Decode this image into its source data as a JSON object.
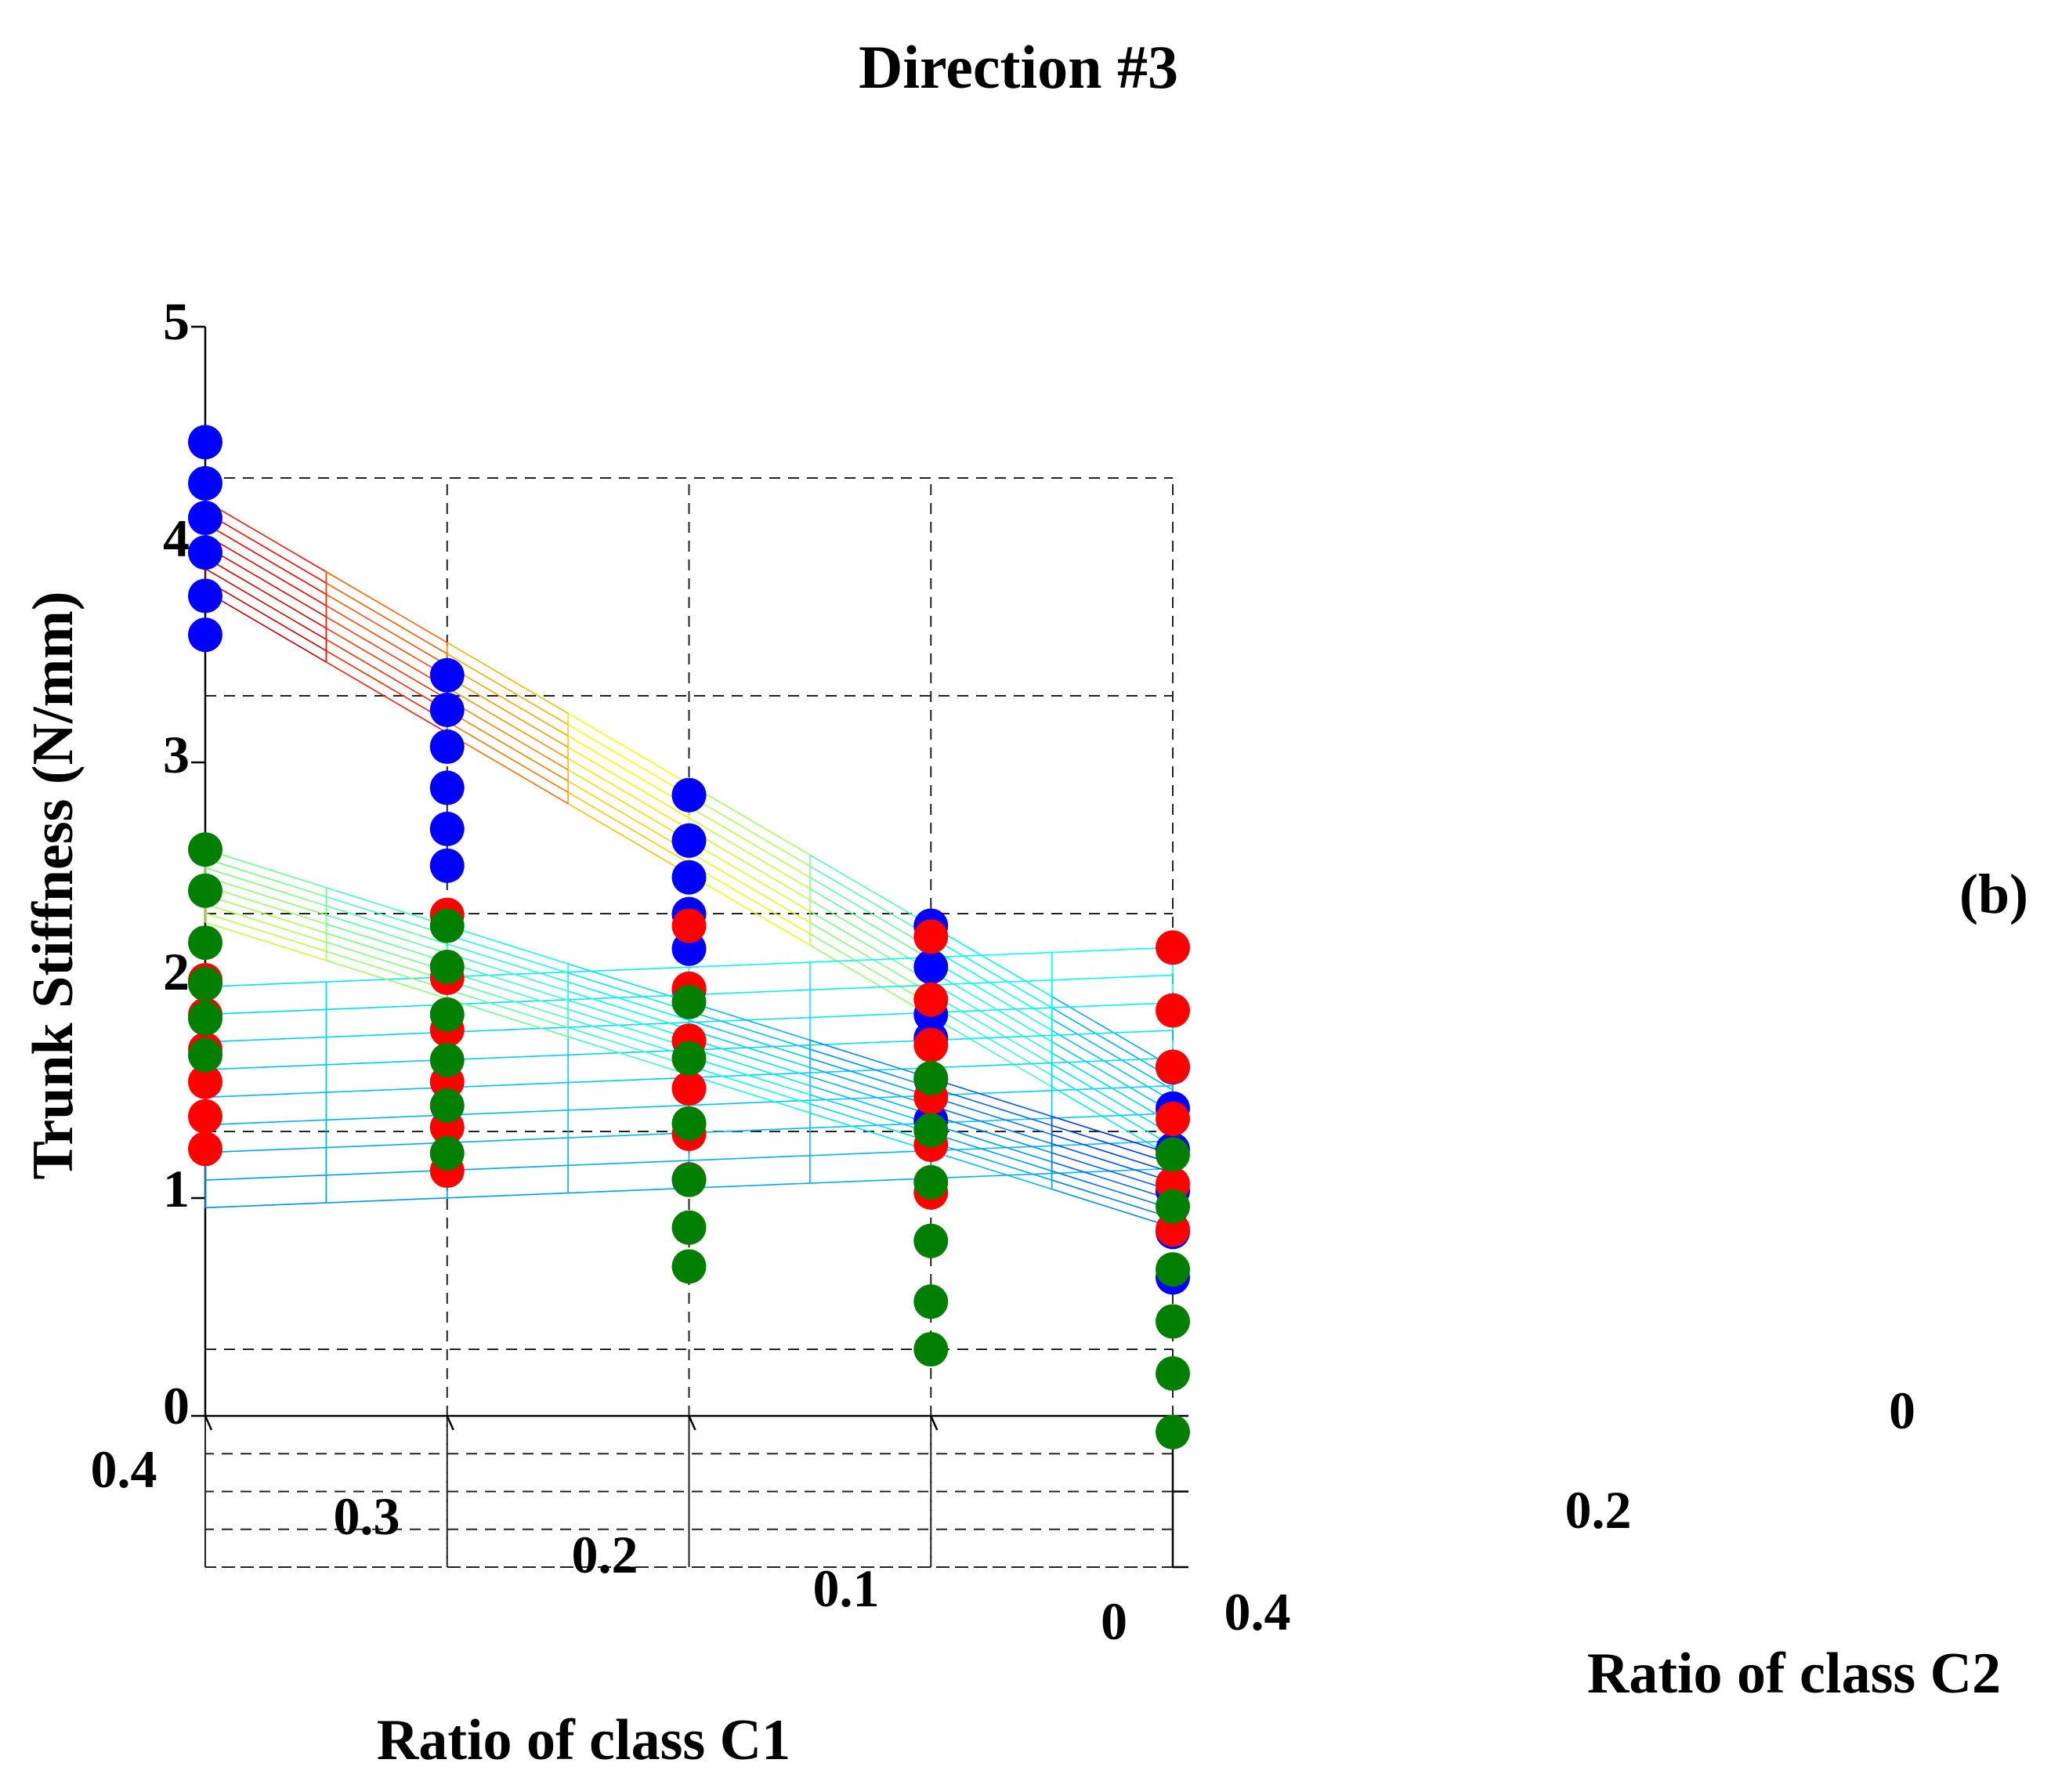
{
  "chart_data": {
    "type": "scatter",
    "subtype": "3d-scatter-with-fitted-surfaces",
    "title": "Direction #3",
    "panel_label": "(b)",
    "xlabel": "Ratio of class C1",
    "ylabel": "Ratio of class C2",
    "zlabel": "Trunk Stiffness (N/mm)",
    "xlim": [
      0,
      0.4
    ],
    "ylim": [
      0,
      0.4
    ],
    "zlim": [
      0,
      5
    ],
    "x_ticks": [
      "0.4",
      "0.3",
      "0.2",
      "0.1",
      "0"
    ],
    "y_ticks": [
      "0",
      "0.2",
      "0.4"
    ],
    "z_ticks": [
      "0",
      "1",
      "2",
      "3",
      "4",
      "5"
    ],
    "grid": "dashed",
    "grid_c1": [
      0,
      0.05,
      0.1,
      0.15,
      0.2,
      0.25,
      0.3,
      0.35,
      0.4
    ],
    "grid_c2": [
      0,
      0.05,
      0.1,
      0.15,
      0.2,
      0.25,
      0.3,
      0.35,
      0.4
    ],
    "point_c1": [
      0,
      0.1,
      0.2,
      0.3,
      0.4
    ],
    "point_c2": [
      0,
      0.08,
      0.16,
      0.24,
      0.32,
      0.4
    ],
    "colormap": "jet",
    "series": [
      {
        "name": "blue",
        "color": "#0000ff",
        "surface": {
          "at_origin": 1.6,
          "slope_c1": 6.5,
          "slope_c2": 0.7
        },
        "points": [
          [
            1.6,
            1.55,
            1.5,
            1.45,
            1.4,
            1.33
          ],
          [
            2.25,
            2.2,
            2.12,
            2.15,
            2.1,
            2.05
          ],
          [
            2.85,
            2.78,
            2.75,
            2.72,
            2.7,
            2.65
          ],
          [
            3.4,
            3.38,
            3.35,
            3.3,
            3.25,
            3.22
          ],
          [
            4.47,
            4.42,
            4.4,
            4.38,
            4.32,
            4.28
          ]
        ]
      },
      {
        "name": "red",
        "color": "#ff0000",
        "surface": {
          "at_origin": 2.15,
          "slope_c1": -0.45,
          "slope_c2": -0.8
        },
        "points": [
          [
            2.15,
            2.0,
            1.88,
            1.78,
            1.62,
            1.55
          ],
          [
            2.2,
            2.05,
            1.98,
            1.88,
            1.8,
            1.72
          ],
          [
            2.25,
            2.1,
            2.0,
            1.92,
            1.85,
            1.78
          ],
          [
            2.3,
            2.15,
            2.05,
            1.95,
            1.88,
            1.82
          ],
          [
            2.0,
            1.98,
            1.96,
            1.95,
            1.93,
            1.92
          ]
        ]
      },
      {
        "name": "green",
        "color": "#007f00",
        "surface": {
          "at_origin": 1.2,
          "slope_c1": 3.5,
          "slope_c2": 0.9
        },
        "points": [
          [
            1.2,
            1.1,
            0.95,
            0.85,
            0.75,
            0.62
          ],
          [
            1.55,
            1.45,
            1.35,
            1.22,
            1.08,
            1.0
          ],
          [
            1.9,
            1.78,
            1.62,
            1.5,
            1.42,
            1.38
          ],
          [
            2.25,
            2.2,
            2.12,
            2.05,
            1.98,
            1.9
          ],
          [
            2.6,
            2.55,
            2.45,
            2.4,
            2.38,
            2.35
          ]
        ]
      }
    ]
  }
}
